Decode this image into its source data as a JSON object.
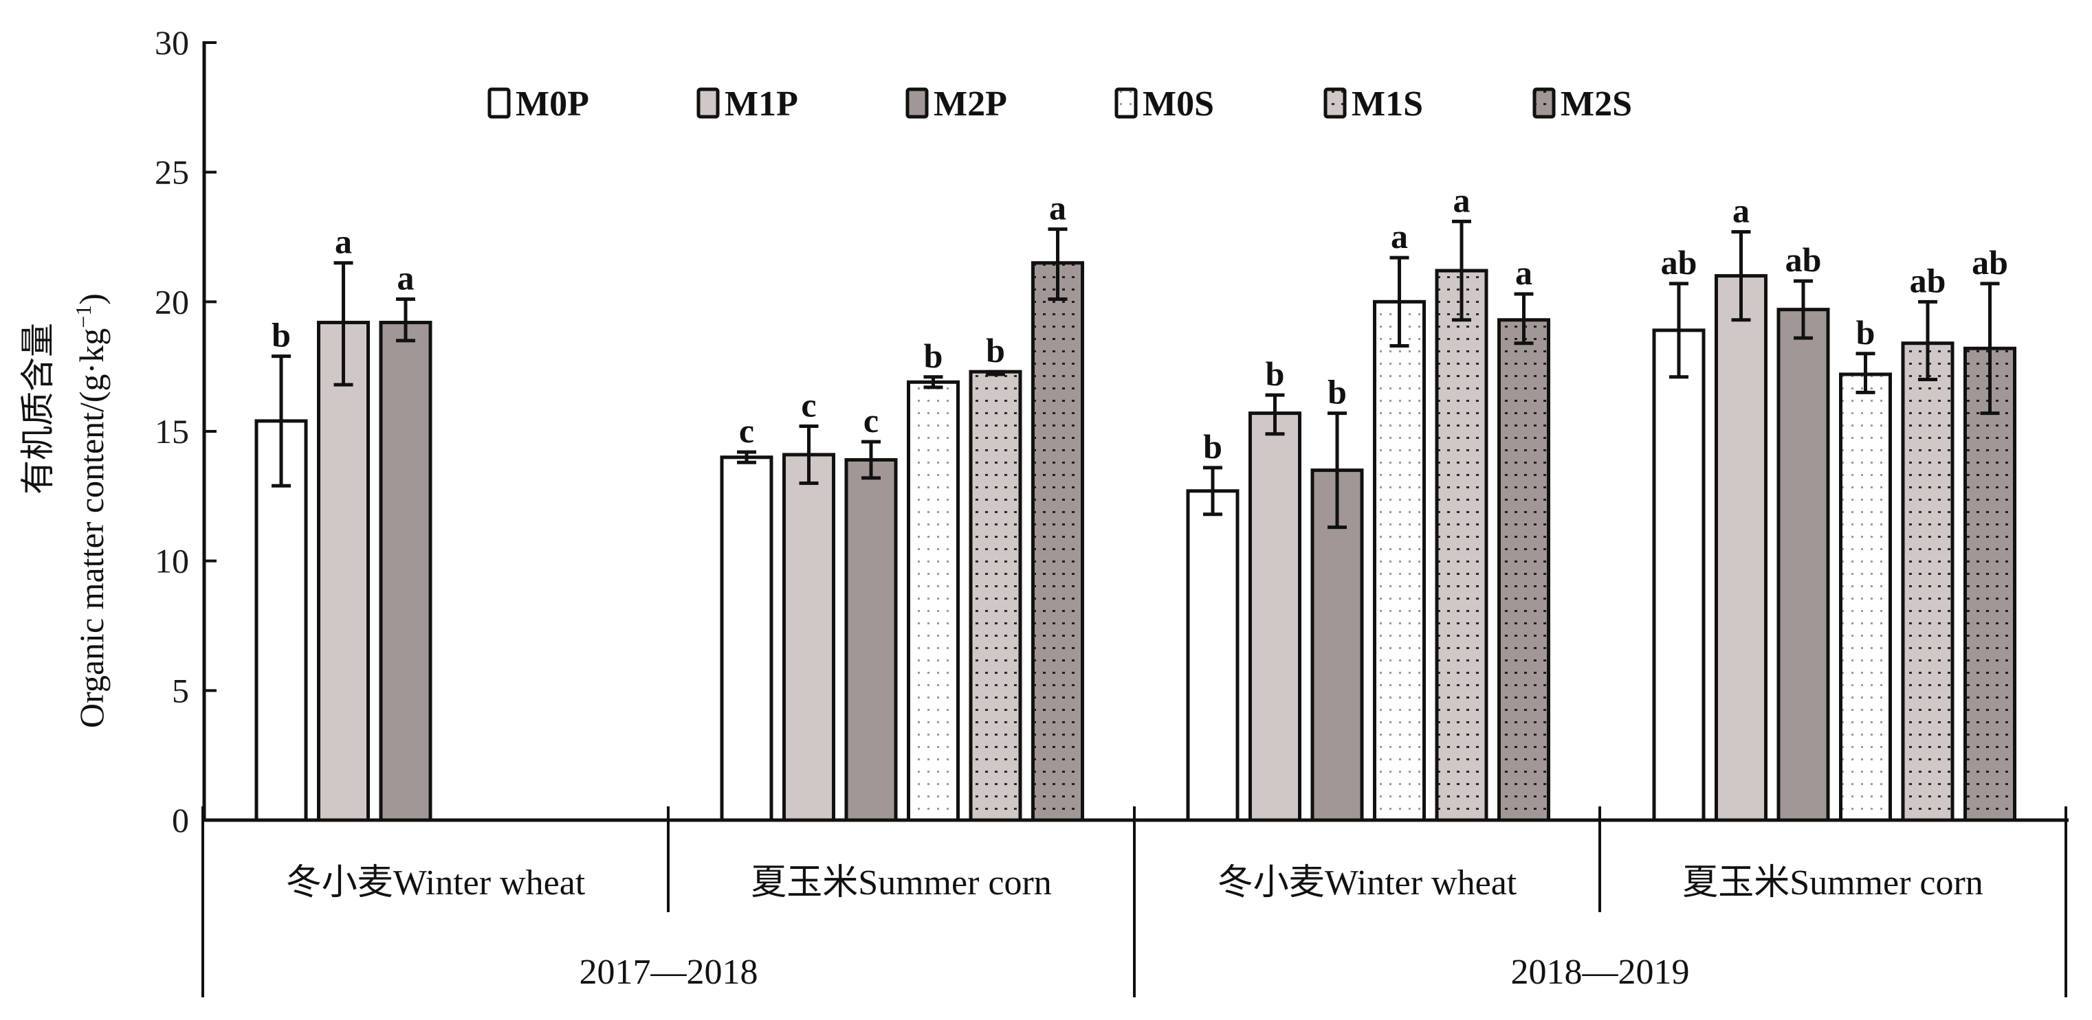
{
  "chart_data": {
    "type": "bar",
    "title": "",
    "ylabel_cn": "有机质含量",
    "ylabel_en": "Organic matter content/(g·kg",
    "ylabel_sup": "−1",
    "ylabel_close": ")",
    "ylim": [
      0,
      30
    ],
    "yticks": [
      0,
      5,
      10,
      15,
      20,
      25,
      30
    ],
    "grid": false,
    "legend_position": "top-center",
    "series_names": [
      "M0P",
      "M1P",
      "M2P",
      "M0S",
      "M1S",
      "M2S"
    ],
    "series_styles": [
      {
        "fill": "#ffffff",
        "pattern": "none"
      },
      {
        "fill": "#d0c8c6",
        "pattern": "none"
      },
      {
        "fill": "#a19896",
        "pattern": "none"
      },
      {
        "fill": "#ffffff",
        "pattern": "dots"
      },
      {
        "fill": "#d0c8c6",
        "pattern": "dots"
      },
      {
        "fill": "#a19896",
        "pattern": "dots"
      }
    ],
    "groups": [
      {
        "crop": "冬小麦Winter wheat",
        "season": "2017—2018",
        "bars": [
          {
            "series": "M0P",
            "value": 15.4,
            "err_low": 12.9,
            "err_high": 17.9,
            "sig": "b"
          },
          {
            "series": "M1P",
            "value": 19.2,
            "err_low": 16.8,
            "err_high": 21.5,
            "sig": "a"
          },
          {
            "series": "M2P",
            "value": 19.2,
            "err_low": 18.5,
            "err_high": 20.1,
            "sig": "a"
          }
        ]
      },
      {
        "crop": "夏玉米Summer corn",
        "season": "2017—2018",
        "bars": [
          {
            "series": "M0P",
            "value": 14.0,
            "err_low": 13.8,
            "err_high": 14.2,
            "sig": "c"
          },
          {
            "series": "M1P",
            "value": 14.1,
            "err_low": 13.0,
            "err_high": 15.2,
            "sig": "c"
          },
          {
            "series": "M2P",
            "value": 13.9,
            "err_low": 13.2,
            "err_high": 14.6,
            "sig": "c"
          },
          {
            "series": "M0S",
            "value": 16.9,
            "err_low": 16.7,
            "err_high": 17.1,
            "sig": "b"
          },
          {
            "series": "M1S",
            "value": 17.3,
            "err_low": 17.2,
            "err_high": 17.3,
            "sig": "b"
          },
          {
            "series": "M2S",
            "value": 21.5,
            "err_low": 20.1,
            "err_high": 22.8,
            "sig": "a"
          }
        ]
      },
      {
        "crop": "冬小麦Winter wheat",
        "season": "2018—2019",
        "bars": [
          {
            "series": "M0P",
            "value": 12.7,
            "err_low": 11.8,
            "err_high": 13.6,
            "sig": "b"
          },
          {
            "series": "M1P",
            "value": 15.7,
            "err_low": 14.9,
            "err_high": 16.4,
            "sig": "b"
          },
          {
            "series": "M2P",
            "value": 13.5,
            "err_low": 11.3,
            "err_high": 15.7,
            "sig": "b"
          },
          {
            "series": "M0S",
            "value": 20.0,
            "err_low": 18.3,
            "err_high": 21.7,
            "sig": "a"
          },
          {
            "series": "M1S",
            "value": 21.2,
            "err_low": 19.3,
            "err_high": 23.1,
            "sig": "a"
          },
          {
            "series": "M2S",
            "value": 19.3,
            "err_low": 18.4,
            "err_high": 20.3,
            "sig": "a"
          }
        ]
      },
      {
        "crop": "夏玉米Summer corn",
        "season": "2018—2019",
        "bars": [
          {
            "series": "M0P",
            "value": 18.9,
            "err_low": 17.1,
            "err_high": 20.7,
            "sig": "ab"
          },
          {
            "series": "M1P",
            "value": 21.0,
            "err_low": 19.3,
            "err_high": 22.7,
            "sig": "a"
          },
          {
            "series": "M2P",
            "value": 19.7,
            "err_low": 18.6,
            "err_high": 20.8,
            "sig": "ab"
          },
          {
            "series": "M0S",
            "value": 17.2,
            "err_low": 16.5,
            "err_high": 18.0,
            "sig": "b"
          },
          {
            "series": "M1S",
            "value": 18.4,
            "err_low": 17.0,
            "err_high": 20.0,
            "sig": "ab"
          },
          {
            "series": "M2S",
            "value": 18.2,
            "err_low": 15.7,
            "err_high": 20.7,
            "sig": "ab"
          }
        ]
      }
    ],
    "seasons": [
      "2017—2018",
      "2018—2019"
    ]
  }
}
